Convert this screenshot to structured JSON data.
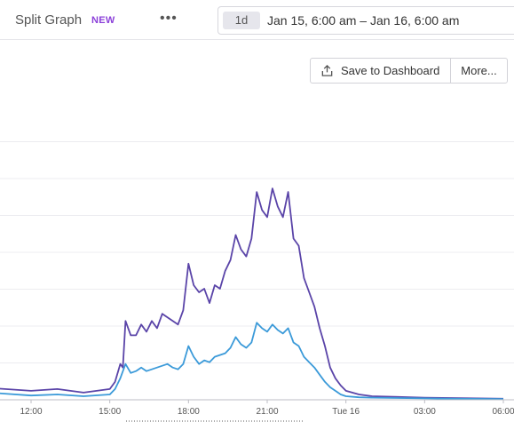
{
  "header": {
    "title": "Split Graph",
    "badge": "NEW",
    "more_menu_icon": "ellipsis-icon",
    "range_chip": "1d",
    "date_range": "Jan 15, 6:00 am – Jan 16, 6:00 am"
  },
  "actions": {
    "save_icon": "share-icon",
    "save_label": "Save to Dashboard",
    "more_label": "More..."
  },
  "chart_data": {
    "type": "line",
    "x_ticks": [
      "12:00",
      "15:00",
      "18:00",
      "21:00",
      "Tue 16",
      "03:00",
      "06:00"
    ],
    "grid": true,
    "colors": {
      "purple": "#5a44a8",
      "blue": "#3b9ad9"
    },
    "series": [
      {
        "color": "#5a44a8",
        "points": [
          [
            0,
            0.5
          ],
          [
            2,
            0.6
          ],
          [
            4,
            0.5
          ],
          [
            6,
            0.6
          ],
          [
            8,
            0.45
          ],
          [
            10,
            0.35
          ],
          [
            12,
            0.25
          ],
          [
            13,
            0.3
          ],
          [
            14,
            0.2
          ],
          [
            15,
            0.3
          ],
          [
            15.2,
            0.5
          ],
          [
            15.4,
            1.0
          ],
          [
            15.5,
            0.9
          ],
          [
            15.6,
            2.2
          ],
          [
            15.8,
            1.8
          ],
          [
            16.0,
            1.8
          ],
          [
            16.2,
            2.1
          ],
          [
            16.4,
            1.9
          ],
          [
            16.6,
            2.2
          ],
          [
            16.8,
            2.0
          ],
          [
            17.0,
            2.4
          ],
          [
            17.2,
            2.3
          ],
          [
            17.4,
            2.2
          ],
          [
            17.6,
            2.1
          ],
          [
            17.8,
            2.5
          ],
          [
            18.0,
            3.8
          ],
          [
            18.2,
            3.2
          ],
          [
            18.4,
            3.0
          ],
          [
            18.6,
            3.1
          ],
          [
            18.8,
            2.7
          ],
          [
            19.0,
            3.2
          ],
          [
            19.2,
            3.1
          ],
          [
            19.4,
            3.6
          ],
          [
            19.6,
            3.9
          ],
          [
            19.8,
            4.6
          ],
          [
            20.0,
            4.2
          ],
          [
            20.2,
            4.0
          ],
          [
            20.4,
            4.5
          ],
          [
            20.6,
            5.8
          ],
          [
            20.8,
            5.3
          ],
          [
            21.0,
            5.1
          ],
          [
            21.2,
            5.9
          ],
          [
            21.4,
            5.4
          ],
          [
            21.6,
            5.1
          ],
          [
            21.8,
            5.8
          ],
          [
            22.0,
            4.5
          ],
          [
            22.2,
            4.3
          ],
          [
            22.4,
            3.4
          ],
          [
            22.6,
            3.0
          ],
          [
            22.8,
            2.6
          ],
          [
            23.0,
            2.0
          ],
          [
            23.2,
            1.5
          ],
          [
            23.4,
            0.9
          ],
          [
            23.6,
            0.6
          ],
          [
            23.8,
            0.4
          ],
          [
            24.0,
            0.25
          ],
          [
            24.5,
            0.15
          ],
          [
            25,
            0.1
          ],
          [
            26,
            0.08
          ],
          [
            27,
            0.06
          ],
          [
            28,
            0.05
          ],
          [
            29,
            0.04
          ],
          [
            30,
            0.03
          ]
        ]
      },
      {
        "color": "#3b9ad9",
        "points": [
          [
            0,
            0.3
          ],
          [
            2,
            0.35
          ],
          [
            4,
            0.3
          ],
          [
            6,
            0.35
          ],
          [
            8,
            0.3
          ],
          [
            10,
            0.22
          ],
          [
            12,
            0.12
          ],
          [
            13,
            0.15
          ],
          [
            14,
            0.1
          ],
          [
            15,
            0.15
          ],
          [
            15.2,
            0.3
          ],
          [
            15.4,
            0.6
          ],
          [
            15.6,
            1.0
          ],
          [
            15.8,
            0.75
          ],
          [
            16.0,
            0.8
          ],
          [
            16.2,
            0.9
          ],
          [
            16.4,
            0.8
          ],
          [
            16.6,
            0.85
          ],
          [
            16.8,
            0.9
          ],
          [
            17.0,
            0.95
          ],
          [
            17.2,
            1.0
          ],
          [
            17.4,
            0.9
          ],
          [
            17.6,
            0.85
          ],
          [
            17.8,
            1.0
          ],
          [
            18.0,
            1.5
          ],
          [
            18.2,
            1.2
          ],
          [
            18.4,
            1.0
          ],
          [
            18.6,
            1.1
          ],
          [
            18.8,
            1.05
          ],
          [
            19.0,
            1.2
          ],
          [
            19.2,
            1.25
          ],
          [
            19.4,
            1.3
          ],
          [
            19.6,
            1.45
          ],
          [
            19.8,
            1.75
          ],
          [
            20.0,
            1.55
          ],
          [
            20.2,
            1.45
          ],
          [
            20.4,
            1.6
          ],
          [
            20.6,
            2.15
          ],
          [
            20.8,
            2.0
          ],
          [
            21.0,
            1.9
          ],
          [
            21.2,
            2.1
          ],
          [
            21.4,
            1.95
          ],
          [
            21.6,
            1.85
          ],
          [
            21.8,
            2.0
          ],
          [
            22.0,
            1.6
          ],
          [
            22.2,
            1.5
          ],
          [
            22.4,
            1.2
          ],
          [
            22.6,
            1.05
          ],
          [
            22.8,
            0.9
          ],
          [
            23.0,
            0.7
          ],
          [
            23.2,
            0.5
          ],
          [
            23.4,
            0.35
          ],
          [
            23.6,
            0.25
          ],
          [
            23.8,
            0.15
          ],
          [
            24.0,
            0.1
          ],
          [
            24.5,
            0.07
          ],
          [
            25,
            0.06
          ],
          [
            26,
            0.05
          ],
          [
            27,
            0.04
          ],
          [
            28,
            0.03
          ],
          [
            30,
            0.02
          ]
        ]
      }
    ]
  }
}
